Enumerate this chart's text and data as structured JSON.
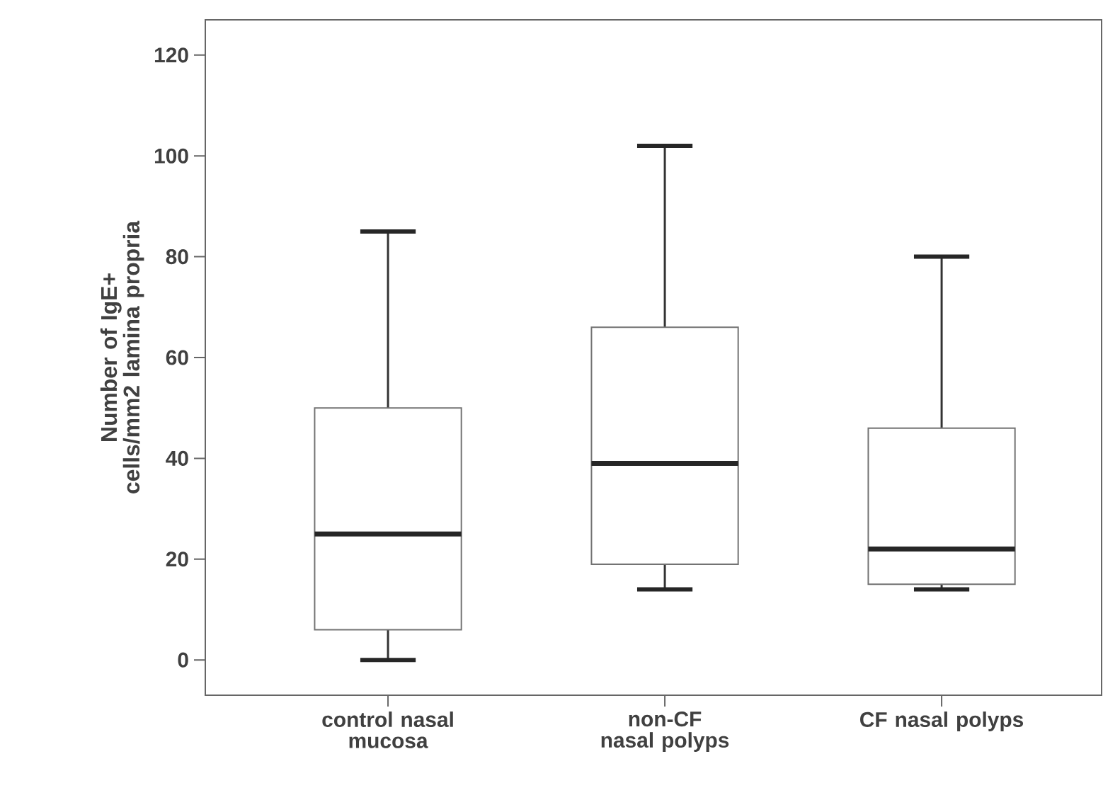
{
  "chart_data": {
    "type": "box",
    "ylabel": "Number of IgE+ cells/mm2 lamina propria",
    "categories": [
      "control nasal mucosa",
      "non-CF nasal polyps",
      "CF nasal polyps"
    ],
    "boxes": [
      {
        "low": 0,
        "q1": 6,
        "median": 25,
        "q3": 50,
        "high": 85
      },
      {
        "low": 14,
        "q1": 19,
        "median": 39,
        "q3": 66,
        "high": 102
      },
      {
        "low": 14,
        "q1": 15,
        "median": 22,
        "q3": 46,
        "high": 80
      }
    ],
    "ylim": [
      -7,
      127
    ],
    "yticks": [
      0,
      20,
      40,
      60,
      80,
      100,
      120
    ]
  }
}
